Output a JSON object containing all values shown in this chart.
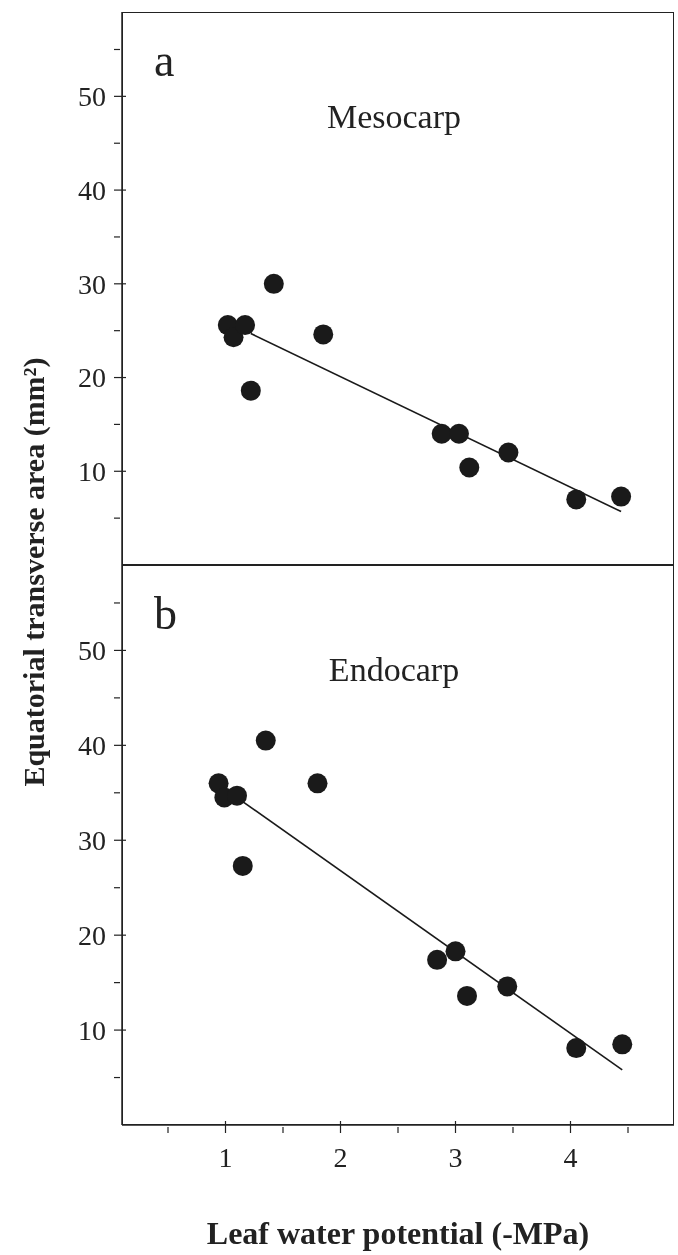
{
  "chart_data": [
    {
      "type": "scatter",
      "annotations": [
        "a",
        "Mesocarp"
      ],
      "ylabel": "Equatorial transverse area (mm²)",
      "xlim": [
        0.1,
        4.9
      ],
      "ylim": [
        0,
        59
      ],
      "yticks": [
        {
          "value": 5,
          "label": null
        },
        10,
        {
          "value": 15,
          "label": null
        },
        20,
        {
          "value": 25,
          "label": null
        },
        30,
        {
          "value": 35,
          "label": null
        },
        40,
        {
          "value": 45,
          "label": null
        },
        50,
        {
          "value": 55,
          "label": null
        }
      ],
      "tick_labels": "y",
      "marker": "circle",
      "series": [
        {
          "color": "#1a1a1a",
          "x": [
            1.02,
            1.07,
            1.17,
            1.22,
            1.42,
            1.85,
            2.88,
            3.03,
            3.12,
            3.46,
            4.05,
            4.44
          ],
          "values": [
            25.6,
            24.3,
            25.6,
            18.6,
            30.0,
            24.6,
            14.0,
            14.0,
            10.4,
            12.0,
            7.0,
            7.3
          ]
        },
        {
          "type": "line",
          "marker": "none",
          "color": "#1a1a1a",
          "x": [
            1.22,
            4.44
          ],
          "values": [
            24.7,
            5.7
          ]
        }
      ]
    },
    {
      "type": "scatter",
      "annotations": [
        "b",
        "Endocarp"
      ],
      "xlabel": "Leaf water potential (-MPa)",
      "xlim": [
        0.1,
        4.9
      ],
      "xticks": [
        {
          "value": 0.5,
          "label": null
        },
        1,
        {
          "value": 1.5,
          "label": null
        },
        2,
        {
          "value": 2.5,
          "label": null
        },
        3,
        {
          "value": 3.5,
          "label": null
        },
        4,
        {
          "value": 4.5,
          "label": null
        }
      ],
      "ylim": [
        0,
        59
      ],
      "yticks": [
        {
          "value": 5,
          "label": null
        },
        10,
        {
          "value": 15,
          "label": null
        },
        20,
        {
          "value": 25,
          "label": null
        },
        30,
        {
          "value": 35,
          "label": null
        },
        40,
        {
          "value": 45,
          "label": null
        },
        50,
        {
          "value": 55,
          "label": null
        }
      ],
      "marker": "circle",
      "series": [
        {
          "color": "#1a1a1a",
          "x": [
            0.94,
            0.99,
            1.1,
            1.15,
            1.35,
            1.8,
            2.84,
            3.0,
            3.1,
            3.45,
            4.05,
            4.45
          ],
          "values": [
            36.0,
            34.5,
            34.7,
            27.3,
            40.5,
            36.0,
            17.4,
            18.3,
            13.6,
            14.6,
            8.1,
            8.5
          ]
        },
        {
          "type": "line",
          "marker": "none",
          "color": "#1a1a1a",
          "x": [
            1.1,
            4.45
          ],
          "values": [
            34.5,
            5.8
          ]
        }
      ]
    }
  ]
}
